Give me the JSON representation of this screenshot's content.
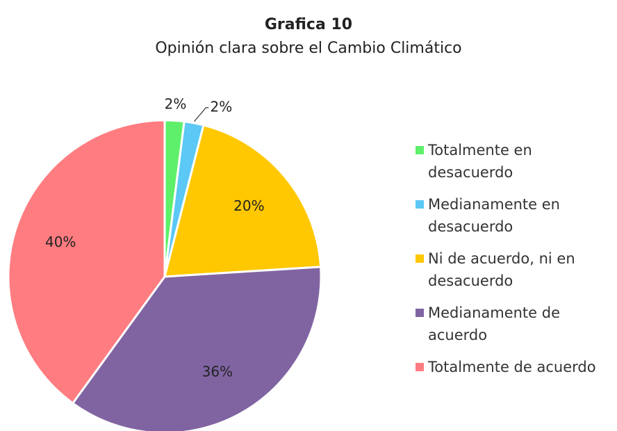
{
  "chart_data": {
    "type": "pie",
    "title": "Grafica 10",
    "subtitle": "Opinión clara sobre el Cambio Climático",
    "categories": [
      "Totalmente en desacuerdo",
      "Medianamente en desacuerdo",
      "Ni de acuerdo, ni en desacuerdo",
      "Medianamente de acuerdo",
      "Totalmente de acuerdo"
    ],
    "values": [
      2,
      2,
      20,
      36,
      40
    ],
    "value_labels": [
      "2%",
      "2%",
      "20%",
      "36%",
      "40%"
    ],
    "colors": [
      "#5ef06a",
      "#5bc8f5",
      "#ffc800",
      "#8064a2",
      "#ff7c80"
    ],
    "legend": "right"
  }
}
